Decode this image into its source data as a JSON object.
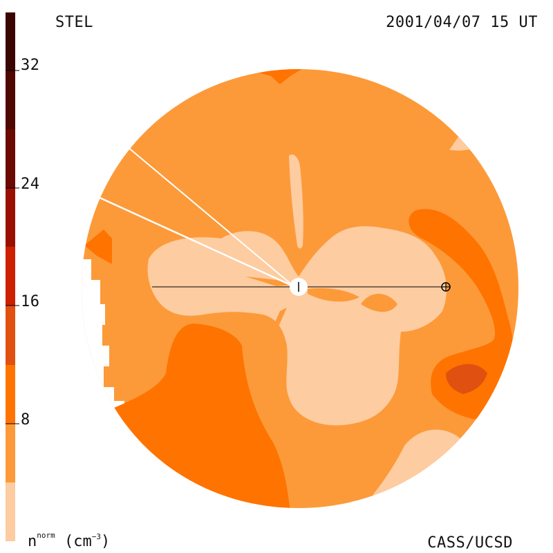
{
  "header": {
    "instrument": "STEL",
    "datetime": "2001/04/07 15 UT"
  },
  "footer": {
    "credit": "CASS/UCSD",
    "unit_base": "n",
    "unit_sup": "norm",
    "unit_paren_open": " (cm",
    "unit_exp": "−3",
    "unit_paren_close": ")"
  },
  "color_scale": {
    "ticks": [
      "32",
      "24",
      "16",
      "8"
    ],
    "bands": [
      "#3a0500",
      "#6a0a00",
      "#9a1000",
      "#cc2000",
      "#e05010",
      "#ff7300",
      "#fc9a3a",
      "#fdcca0"
    ]
  },
  "colors": {
    "background": "#ffffff",
    "level_1": "#fdcca0",
    "level_2": "#fc9a3a",
    "level_3": "#ff7300",
    "level_4": "#e05010",
    "sun": "#ffffff",
    "earth_line": "#000000"
  },
  "map": {
    "markers": [
      {
        "name": "sun-marker",
        "symbol": "center"
      },
      {
        "name": "earth-marker",
        "symbol": "⊕"
      }
    ]
  }
}
